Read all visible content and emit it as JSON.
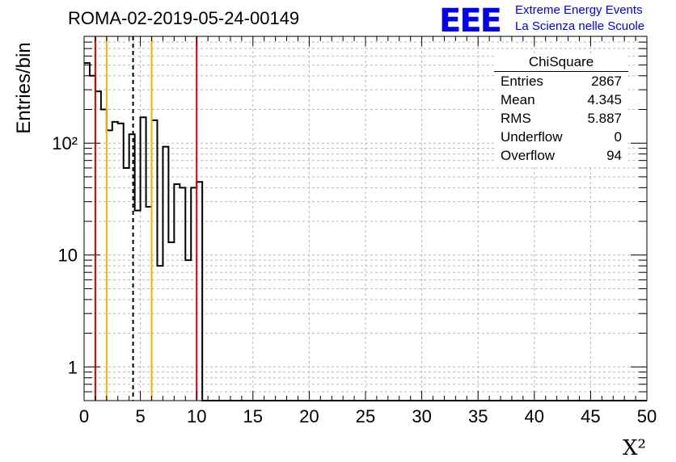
{
  "title": "ROMA-02-2019-05-24-00149",
  "logo": {
    "mark": "EEE",
    "line1": "Extreme Energy Events",
    "line2": "La Scienza nelle Scuole",
    "color": "#0000ee"
  },
  "stats": {
    "name": "ChiSquare",
    "rows": [
      {
        "key": "Entries",
        "value": "2867"
      },
      {
        "key": "Mean",
        "value": "4.345"
      },
      {
        "key": "RMS",
        "value": "5.887"
      },
      {
        "key": "Underflow",
        "value": "0"
      },
      {
        "key": "Overflow",
        "value": "94"
      }
    ]
  },
  "chart_data": {
    "type": "histogram",
    "xlabel": "X²",
    "ylabel": "Entries/bin",
    "xlim": [
      0,
      50
    ],
    "ylim": [
      0.5,
      900
    ],
    "yscale": "log",
    "bin_width": 0.5,
    "grid": true,
    "x_tick_labels": [
      "0",
      "5",
      "10",
      "15",
      "20",
      "25",
      "30",
      "35",
      "40",
      "45",
      "50"
    ],
    "y_tick_labels": [
      "1",
      "10",
      "10²"
    ],
    "values": [
      520,
      400,
      290,
      200,
      130,
      155,
      150,
      60,
      120,
      25,
      170,
      27,
      160,
      8,
      93,
      13,
      43,
      40,
      9,
      40,
      45,
      0,
      0,
      0,
      0,
      0,
      0,
      0,
      0,
      0,
      0,
      0,
      0,
      0,
      0,
      0,
      0,
      0,
      0,
      0,
      0,
      0,
      0,
      0,
      0,
      0,
      0,
      0,
      0,
      0,
      0,
      0,
      0,
      0,
      0,
      0,
      0,
      0,
      0,
      0,
      0,
      0,
      0,
      0,
      0,
      0,
      0,
      0,
      0,
      0,
      0,
      0,
      0,
      0,
      0,
      0,
      0,
      0,
      0,
      0,
      0,
      0,
      0,
      0,
      0,
      0,
      0,
      0,
      0,
      0,
      0,
      0,
      0,
      0,
      0,
      0,
      0,
      0,
      0,
      0
    ],
    "vertical_lines": [
      {
        "x": 1,
        "color": "#dd0000",
        "style": "solid"
      },
      {
        "x": 2,
        "color": "#f0b400",
        "style": "solid"
      },
      {
        "x": 4.35,
        "color": "#000000",
        "style": "dashed"
      },
      {
        "x": 6,
        "color": "#f0b400",
        "style": "solid"
      },
      {
        "x": 10,
        "color": "#dd0000",
        "style": "solid"
      }
    ]
  }
}
